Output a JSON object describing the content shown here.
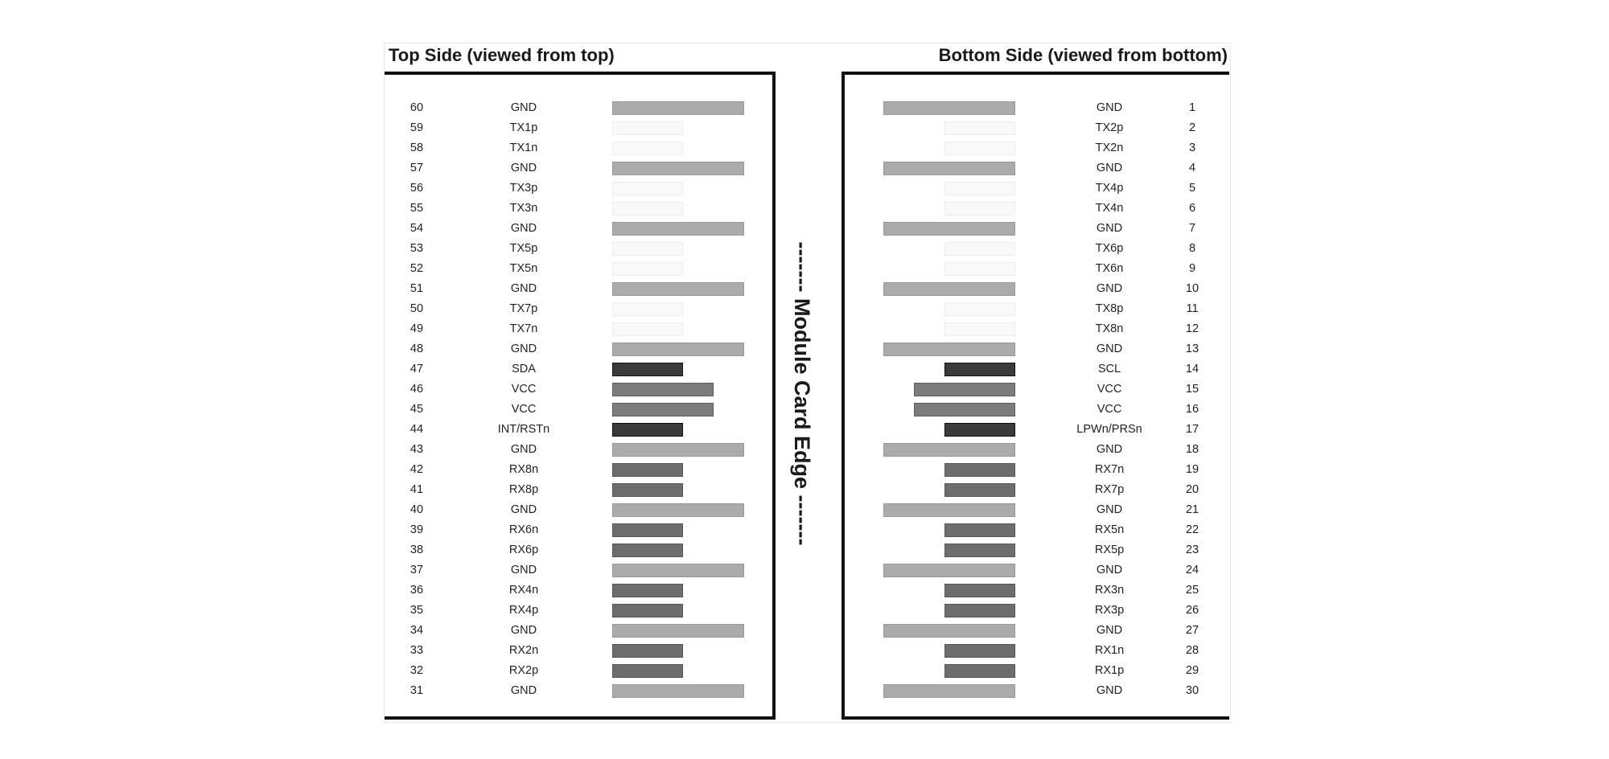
{
  "titles": {
    "top": "Top Side (viewed from top)",
    "bottom": "Bottom Side (viewed from bottom)"
  },
  "card_edge_label": "------- Module Card Edge -------",
  "top_side": [
    {
      "pin": "60",
      "signal": "GND",
      "type": "gnd"
    },
    {
      "pin": "59",
      "signal": "TX1p",
      "type": "hs-tx"
    },
    {
      "pin": "58",
      "signal": "TX1n",
      "type": "hs-tx"
    },
    {
      "pin": "57",
      "signal": "GND",
      "type": "gnd"
    },
    {
      "pin": "56",
      "signal": "TX3p",
      "type": "hs-tx"
    },
    {
      "pin": "55",
      "signal": "TX3n",
      "type": "hs-tx"
    },
    {
      "pin": "54",
      "signal": "GND",
      "type": "gnd"
    },
    {
      "pin": "53",
      "signal": "TX5p",
      "type": "hs-tx"
    },
    {
      "pin": "52",
      "signal": "TX5n",
      "type": "hs-tx"
    },
    {
      "pin": "51",
      "signal": "GND",
      "type": "gnd"
    },
    {
      "pin": "50",
      "signal": "TX7p",
      "type": "hs-tx"
    },
    {
      "pin": "49",
      "signal": "TX7n",
      "type": "hs-tx"
    },
    {
      "pin": "48",
      "signal": "GND",
      "type": "gnd"
    },
    {
      "pin": "47",
      "signal": "SDA",
      "type": "ctrl"
    },
    {
      "pin": "46",
      "signal": "VCC",
      "type": "pwr"
    },
    {
      "pin": "45",
      "signal": "VCC",
      "type": "pwr"
    },
    {
      "pin": "44",
      "signal": "INT/RSTn",
      "type": "ctrl"
    },
    {
      "pin": "43",
      "signal": "GND",
      "type": "gnd"
    },
    {
      "pin": "42",
      "signal": "RX8n",
      "type": "hs-rx"
    },
    {
      "pin": "41",
      "signal": "RX8p",
      "type": "hs-rx"
    },
    {
      "pin": "40",
      "signal": "GND",
      "type": "gnd"
    },
    {
      "pin": "39",
      "signal": "RX6n",
      "type": "hs-rx"
    },
    {
      "pin": "38",
      "signal": "RX6p",
      "type": "hs-rx"
    },
    {
      "pin": "37",
      "signal": "GND",
      "type": "gnd"
    },
    {
      "pin": "36",
      "signal": "RX4n",
      "type": "hs-rx"
    },
    {
      "pin": "35",
      "signal": "RX4p",
      "type": "hs-rx"
    },
    {
      "pin": "34",
      "signal": "GND",
      "type": "gnd"
    },
    {
      "pin": "33",
      "signal": "RX2n",
      "type": "hs-rx"
    },
    {
      "pin": "32",
      "signal": "RX2p",
      "type": "hs-rx"
    },
    {
      "pin": "31",
      "signal": "GND",
      "type": "gnd"
    }
  ],
  "bottom_side": [
    {
      "pin": "1",
      "signal": "GND",
      "type": "gnd"
    },
    {
      "pin": "2",
      "signal": "TX2p",
      "type": "hs-tx"
    },
    {
      "pin": "3",
      "signal": "TX2n",
      "type": "hs-tx"
    },
    {
      "pin": "4",
      "signal": "GND",
      "type": "gnd"
    },
    {
      "pin": "5",
      "signal": "TX4p",
      "type": "hs-tx"
    },
    {
      "pin": "6",
      "signal": "TX4n",
      "type": "hs-tx"
    },
    {
      "pin": "7",
      "signal": "GND",
      "type": "gnd"
    },
    {
      "pin": "8",
      "signal": "TX6p",
      "type": "hs-tx"
    },
    {
      "pin": "9",
      "signal": "TX6n",
      "type": "hs-tx"
    },
    {
      "pin": "10",
      "signal": "GND",
      "type": "gnd"
    },
    {
      "pin": "11",
      "signal": "TX8p",
      "type": "hs-tx"
    },
    {
      "pin": "12",
      "signal": "TX8n",
      "type": "hs-tx"
    },
    {
      "pin": "13",
      "signal": "GND",
      "type": "gnd"
    },
    {
      "pin": "14",
      "signal": "SCL",
      "type": "ctrl"
    },
    {
      "pin": "15",
      "signal": "VCC",
      "type": "pwr"
    },
    {
      "pin": "16",
      "signal": "VCC",
      "type": "pwr"
    },
    {
      "pin": "17",
      "signal": "LPWn/PRSn",
      "type": "ctrl"
    },
    {
      "pin": "18",
      "signal": "GND",
      "type": "gnd"
    },
    {
      "pin": "19",
      "signal": "RX7n",
      "type": "hs-rx"
    },
    {
      "pin": "20",
      "signal": "RX7p",
      "type": "hs-rx"
    },
    {
      "pin": "21",
      "signal": "GND",
      "type": "gnd"
    },
    {
      "pin": "22",
      "signal": "RX5n",
      "type": "hs-rx"
    },
    {
      "pin": "23",
      "signal": "RX5p",
      "type": "hs-rx"
    },
    {
      "pin": "24",
      "signal": "GND",
      "type": "gnd"
    },
    {
      "pin": "25",
      "signal": "RX3n",
      "type": "hs-rx"
    },
    {
      "pin": "26",
      "signal": "RX3p",
      "type": "hs-rx"
    },
    {
      "pin": "27",
      "signal": "GND",
      "type": "gnd"
    },
    {
      "pin": "28",
      "signal": "RX1n",
      "type": "hs-rx"
    },
    {
      "pin": "29",
      "signal": "RX1p",
      "type": "hs-rx"
    },
    {
      "pin": "30",
      "signal": "GND",
      "type": "gnd"
    }
  ]
}
